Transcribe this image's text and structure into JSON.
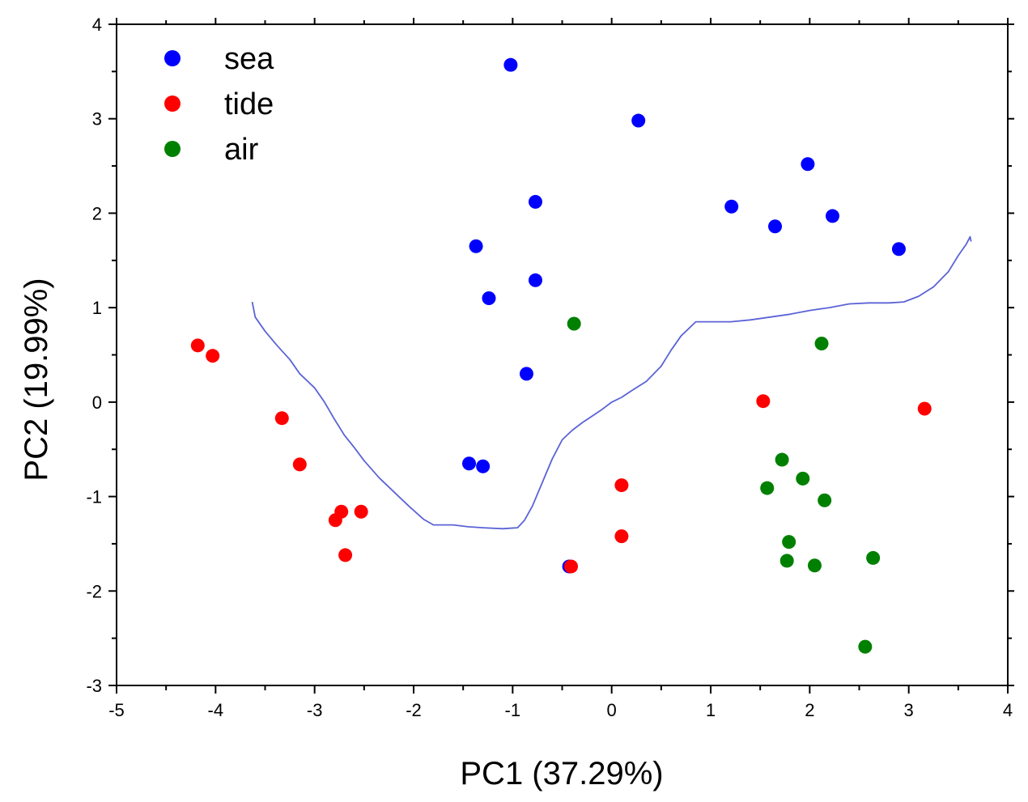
{
  "chart_data": {
    "type": "scatter",
    "title": "",
    "xlabel": "PC1 (37.29%)",
    "ylabel": "PC2 (19.99%)",
    "xlim": [
      -5,
      4
    ],
    "ylim": [
      -3,
      4
    ],
    "xticks": [
      -5,
      -4,
      -3,
      -2,
      -1,
      0,
      1,
      2,
      3,
      4
    ],
    "yticks": [
      -3,
      -2,
      -1,
      0,
      1,
      2,
      3,
      4
    ],
    "xtick_labels": [
      "-5",
      "-4",
      "-3",
      "-2",
      "-1",
      "0",
      "1",
      "2",
      "3",
      "4"
    ],
    "ytick_labels": [
      "-3",
      "-2",
      "-1",
      "0",
      "1",
      "2",
      "3",
      "4"
    ],
    "grid": false,
    "legend_position": "top-left",
    "series": [
      {
        "name": "sea",
        "color": "#0000ff",
        "points": [
          [
            -1.02,
            3.57
          ],
          [
            0.27,
            2.98
          ],
          [
            1.98,
            2.52
          ],
          [
            -0.77,
            2.12
          ],
          [
            1.21,
            2.07
          ],
          [
            2.23,
            1.97
          ],
          [
            1.65,
            1.86
          ],
          [
            2.9,
            1.62
          ],
          [
            -1.37,
            1.65
          ],
          [
            -0.77,
            1.29
          ],
          [
            -1.24,
            1.1
          ],
          [
            -0.86,
            0.3
          ],
          [
            -1.44,
            -0.65
          ],
          [
            -1.3,
            -0.68
          ],
          [
            -0.43,
            -1.74
          ]
        ]
      },
      {
        "name": "tide",
        "color": "#ff0000",
        "points": [
          [
            -4.18,
            0.6
          ],
          [
            -4.03,
            0.49
          ],
          [
            -3.33,
            -0.17
          ],
          [
            -3.15,
            -0.66
          ],
          [
            -2.73,
            -1.16
          ],
          [
            -2.53,
            -1.16
          ],
          [
            -2.79,
            -1.25
          ],
          [
            -2.69,
            -1.62
          ],
          [
            -0.41,
            -1.74
          ],
          [
            0.1,
            -0.88
          ],
          [
            0.1,
            -1.42
          ],
          [
            1.53,
            0.01
          ],
          [
            3.16,
            -0.07
          ]
        ]
      },
      {
        "name": "air",
        "color": "#008000",
        "points": [
          [
            -0.38,
            0.83
          ],
          [
            2.12,
            0.62
          ],
          [
            1.72,
            -0.61
          ],
          [
            1.57,
            -0.91
          ],
          [
            1.93,
            -0.81
          ],
          [
            2.15,
            -1.04
          ],
          [
            1.79,
            -1.48
          ],
          [
            1.77,
            -1.68
          ],
          [
            2.05,
            -1.73
          ],
          [
            2.64,
            -1.65
          ],
          [
            2.56,
            -2.59
          ]
        ]
      }
    ],
    "boundary": {
      "color": "#5b63d6",
      "points": [
        [
          -3.63,
          1.06
        ],
        [
          -3.6,
          0.9
        ],
        [
          -3.5,
          0.75
        ],
        [
          -3.38,
          0.6
        ],
        [
          -3.25,
          0.45
        ],
        [
          -3.15,
          0.3
        ],
        [
          -3.0,
          0.15
        ],
        [
          -2.9,
          0.0
        ],
        [
          -2.8,
          -0.18
        ],
        [
          -2.7,
          -0.35
        ],
        [
          -2.6,
          -0.48
        ],
        [
          -2.5,
          -0.62
        ],
        [
          -2.35,
          -0.8
        ],
        [
          -2.2,
          -0.95
        ],
        [
          -2.05,
          -1.1
        ],
        [
          -1.9,
          -1.24
        ],
        [
          -1.8,
          -1.3
        ],
        [
          -1.6,
          -1.3
        ],
        [
          -1.45,
          -1.32
        ],
        [
          -1.3,
          -1.33
        ],
        [
          -1.1,
          -1.34
        ],
        [
          -0.95,
          -1.33
        ],
        [
          -0.88,
          -1.25
        ],
        [
          -0.8,
          -1.1
        ],
        [
          -0.7,
          -0.85
        ],
        [
          -0.6,
          -0.6
        ],
        [
          -0.5,
          -0.4
        ],
        [
          -0.4,
          -0.3
        ],
        [
          -0.3,
          -0.22
        ],
        [
          -0.2,
          -0.15
        ],
        [
          -0.1,
          -0.08
        ],
        [
          0.0,
          0.0
        ],
        [
          0.1,
          0.05
        ],
        [
          0.2,
          0.12
        ],
        [
          0.35,
          0.22
        ],
        [
          0.5,
          0.38
        ],
        [
          0.6,
          0.55
        ],
        [
          0.7,
          0.7
        ],
        [
          0.85,
          0.85
        ],
        [
          1.0,
          0.85
        ],
        [
          1.2,
          0.85
        ],
        [
          1.4,
          0.87
        ],
        [
          1.6,
          0.9
        ],
        [
          1.8,
          0.93
        ],
        [
          2.0,
          0.97
        ],
        [
          2.2,
          1.0
        ],
        [
          2.4,
          1.04
        ],
        [
          2.6,
          1.05
        ],
        [
          2.8,
          1.05
        ],
        [
          2.95,
          1.06
        ],
        [
          3.1,
          1.12
        ],
        [
          3.25,
          1.22
        ],
        [
          3.4,
          1.38
        ],
        [
          3.5,
          1.55
        ],
        [
          3.58,
          1.67
        ],
        [
          3.62,
          1.75
        ],
        [
          3.63,
          1.7
        ]
      ]
    }
  }
}
